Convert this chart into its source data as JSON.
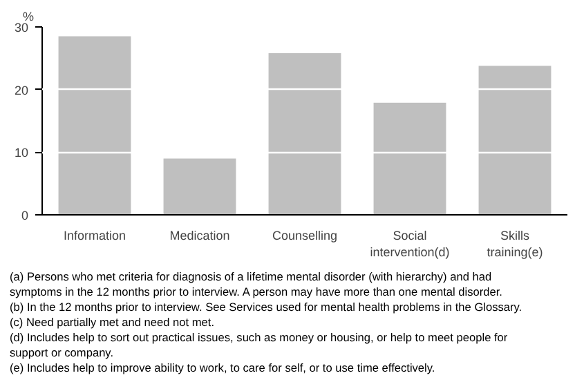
{
  "chart_data": {
    "type": "bar",
    "ylabel": "%",
    "categories": [
      "Information",
      "Medication",
      "Counselling",
      "Social intervention(d)",
      "Skills training(e)"
    ],
    "values": [
      28.5,
      9.0,
      25.8,
      17.9,
      23.8
    ],
    "color": "#bfbfbf",
    "ylim": [
      0,
      30
    ],
    "yticks": [
      0,
      10,
      20,
      30
    ],
    "grid": "y",
    "annotations": [
      "(a) Persons who met criteria for diagnosis of a lifetime mental disorder (with hierarchy) and had symptoms in the 12 months prior to interview. A person may have more than one mental disorder.",
      "(b) In the 12 months prior to interview. See Services used for mental health problems in the Glossary.",
      "(c) Need partially met and need not met.",
      "(d) Includes help to sort out practical issues, such as money or housing, or help to meet people for support or company.",
      "(e) Includes help to improve ability to work, to care for self, or to use time effectively."
    ]
  }
}
